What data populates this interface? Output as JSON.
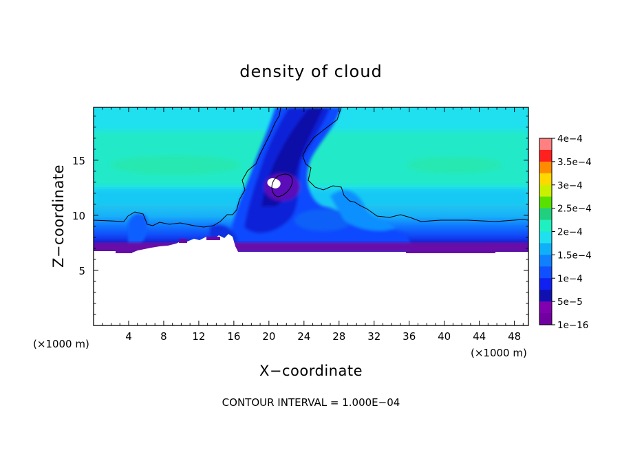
{
  "chart_data": {
    "type": "heatmap",
    "title": "density of cloud",
    "xlabel": "X−coordinate",
    "ylabel": "Z−coordinate",
    "x_unit": "(×1000 m)",
    "z_unit": "(×1000 m)",
    "footer": "CONTOUR INTERVAL = 1.000E−04",
    "xlim": [
      0,
      49.6
    ],
    "zlim": [
      0,
      19.8
    ],
    "x_ticks": [
      4,
      8,
      12,
      16,
      20,
      24,
      28,
      32,
      36,
      40,
      44,
      48
    ],
    "x_tick_labels": [
      "4",
      "8",
      "12",
      "16",
      "20",
      "24",
      "28",
      "32",
      "36",
      "40",
      "44",
      "48"
    ],
    "z_ticks": [
      5,
      10,
      15
    ],
    "z_tick_labels": [
      "5",
      "10",
      "15"
    ],
    "colorbar": {
      "labels": [
        "4e−4",
        "3.5e−4",
        "3e−4",
        "2.5e−4",
        "2e−4",
        "1.5e−4",
        "1e−4",
        "5e−5",
        "1e−16"
      ],
      "levels": [
        0.0004,
        0.00035,
        0.0003,
        0.00025,
        0.0002,
        0.00015,
        0.0001,
        5e-05,
        1e-16
      ],
      "colors_top_to_bottom": [
        "#ff8080",
        "#ff2020",
        "#ff8c00",
        "#ffd800",
        "#c8f000",
        "#58e000",
        "#20d080",
        "#20f0c0",
        "#20e0f0",
        "#10b0f8",
        "#1080ff",
        "#1050ff",
        "#1020f0",
        "#1010b0",
        "#8000b0",
        "#7000a0"
      ]
    },
    "cloud_base_km": 7.0,
    "background_level_km": 9.7,
    "cloud_top_km": 19.8,
    "max_value_region": {
      "x_km": 20.5,
      "z_km": 13.0,
      "value": 1e-16
    }
  }
}
